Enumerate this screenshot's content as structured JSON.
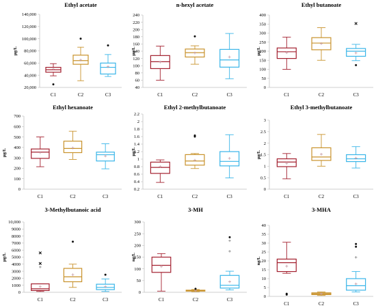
{
  "colors": {
    "C1": "#a31f2e",
    "C2": "#c8922b",
    "C3": "#38b5e8",
    "mean_marker": "#c89da8"
  },
  "chart_data": [
    {
      "type": "box",
      "title": "Ethyl acetate",
      "ylabel": "µg/L",
      "ylim": [
        20000,
        140000
      ],
      "yticks": [
        20000,
        40000,
        60000,
        80000,
        100000,
        120000,
        140000
      ],
      "ytick_labels": [
        "20,000",
        "40,000",
        "60,000",
        "80,000",
        "100,000",
        "120,000",
        "140,000"
      ],
      "categories": [
        "C1",
        "C2",
        "C3"
      ],
      "series": [
        {
          "name": "C1",
          "min": 39000,
          "q1": 45000,
          "median": 49000,
          "q3": 53000,
          "max": 59000,
          "mean": 50000,
          "outliers": [
            {
              "y": 25000,
              "marker": "dot"
            }
          ]
        },
        {
          "name": "C2",
          "min": 31000,
          "q1": 58000,
          "median": 64000,
          "q3": 73000,
          "max": 86000,
          "mean": 65000,
          "outliers": [
            {
              "y": 100000,
              "marker": "dot"
            }
          ]
        },
        {
          "name": "C3",
          "min": 38000,
          "q1": 42000,
          "median": 53000,
          "q3": 60000,
          "max": 74000,
          "mean": 54000,
          "outliers": [
            {
              "y": 89000,
              "marker": "dot"
            }
          ]
        }
      ]
    },
    {
      "type": "box",
      "title": "n-hexyl acetate",
      "ylabel": "µg/L",
      "ylim": [
        40,
        240
      ],
      "yticks": [
        40,
        60,
        80,
        100,
        120,
        140,
        160,
        180,
        200,
        220,
        240
      ],
      "ytick_labels": [
        "40",
        "60",
        "80",
        "100",
        "120",
        "140",
        "160",
        "180",
        "200",
        "220",
        "240"
      ],
      "categories": [
        "C1",
        "C2",
        "C3"
      ],
      "series": [
        {
          "name": "C1",
          "min": 60,
          "q1": 92,
          "median": 111,
          "q3": 128,
          "max": 154,
          "mean": 110,
          "outliers": []
        },
        {
          "name": "C2",
          "min": 104,
          "q1": 124,
          "median": 136,
          "q3": 146,
          "max": 155,
          "mean": 135,
          "outliers": [
            {
              "y": 181,
              "marker": "dot"
            }
          ]
        },
        {
          "name": "C3",
          "min": 64,
          "q1": 96,
          "median": 116,
          "q3": 145,
          "max": 189,
          "mean": 124,
          "outliers": []
        }
      ]
    },
    {
      "type": "box",
      "title": "Ethyl butanoate",
      "ylabel": "µg/L",
      "ylim": [
        0,
        400
      ],
      "yticks": [
        0,
        50,
        100,
        150,
        200,
        250,
        300,
        350,
        400
      ],
      "ytick_labels": [
        "0",
        "50",
        "100",
        "150",
        "200",
        "250",
        "300",
        "350",
        "400"
      ],
      "categories": [
        "C1",
        "C2",
        "C3"
      ],
      "series": [
        {
          "name": "C1",
          "min": 100,
          "q1": 160,
          "median": 197,
          "q3": 218,
          "max": 278,
          "mean": 192,
          "outliers": []
        },
        {
          "name": "C2",
          "min": 150,
          "q1": 208,
          "median": 245,
          "q3": 275,
          "max": 330,
          "mean": 242,
          "outliers": []
        },
        {
          "name": "C3",
          "min": 148,
          "q1": 172,
          "median": 200,
          "q3": 215,
          "max": 238,
          "mean": 190,
          "outliers": [
            {
              "y": 353,
              "marker": "x"
            },
            {
              "y": 123,
              "marker": "dot"
            }
          ]
        }
      ]
    },
    {
      "type": "box",
      "title": "Ethyl hexanoate",
      "ylabel": "µg/L",
      "ylim": [
        0,
        700
      ],
      "yticks": [
        0,
        100,
        200,
        300,
        400,
        500,
        600,
        700
      ],
      "ytick_labels": [
        "0",
        "100",
        "200",
        "300",
        "400",
        "500",
        "600",
        "700"
      ],
      "categories": [
        "C1",
        "C2",
        "C3"
      ],
      "series": [
        {
          "name": "C1",
          "min": 215,
          "q1": 295,
          "median": 355,
          "q3": 385,
          "max": 500,
          "mean": 350,
          "outliers": []
        },
        {
          "name": "C2",
          "min": 285,
          "q1": 350,
          "median": 390,
          "q3": 460,
          "max": 555,
          "mean": 395,
          "outliers": []
        },
        {
          "name": "C3",
          "min": 195,
          "q1": 270,
          "median": 330,
          "q3": 355,
          "max": 435,
          "mean": 318,
          "outliers": []
        }
      ]
    },
    {
      "type": "box",
      "title": "Ethyl 2-methylbutanoate",
      "ylabel": "µg/L",
      "ylim": [
        0.2,
        2.2
      ],
      "yticks": [
        0.2,
        0.4,
        0.6,
        0.8,
        1.0,
        1.2,
        1.4,
        1.6,
        1.8,
        2.0,
        2.2
      ],
      "ytick_labels": [
        "0.2",
        "0.4",
        "0.6",
        "0.8",
        "1",
        "1.2",
        "1.4",
        "1.6",
        "1.8",
        "2",
        "2.2"
      ],
      "categories": [
        "C1",
        "C2",
        "C3"
      ],
      "series": [
        {
          "name": "C1",
          "min": 0.38,
          "q1": 0.62,
          "median": 0.78,
          "q3": 0.92,
          "max": 0.98,
          "mean": 0.8,
          "outliers": []
        },
        {
          "name": "C2",
          "min": 0.75,
          "q1": 0.84,
          "median": 0.95,
          "q3": 1.12,
          "max": 1.15,
          "mean": 0.97,
          "outliers": [
            {
              "y": 1.6,
              "marker": "dot"
            },
            {
              "y": 1.63,
              "marker": "dot"
            }
          ]
        },
        {
          "name": "C3",
          "min": 0.5,
          "q1": 0.82,
          "median": 0.94,
          "q3": 1.2,
          "max": 1.65,
          "mean": 1.02,
          "outliers": []
        }
      ]
    },
    {
      "type": "box",
      "title": "Ethyl 3-methylbutanoate",
      "ylabel": "µg/L",
      "ylim": [
        0,
        3
      ],
      "yticks": [
        0,
        0.5,
        1,
        1.5,
        2,
        2.5,
        3
      ],
      "ytick_labels": [
        "0",
        "0.5",
        "1",
        "1.5",
        "2",
        "2.5",
        "3"
      ],
      "categories": [
        "C1",
        "C2",
        "C3"
      ],
      "series": [
        {
          "name": "C1",
          "min": 0.45,
          "q1": 0.98,
          "median": 1.18,
          "q3": 1.32,
          "max": 1.55,
          "mean": 1.12,
          "outliers": []
        },
        {
          "name": "C2",
          "min": 1.0,
          "q1": 1.25,
          "median": 1.4,
          "q3": 1.8,
          "max": 2.38,
          "mean": 1.52,
          "outliers": []
        },
        {
          "name": "C3",
          "min": 0.92,
          "q1": 1.2,
          "median": 1.32,
          "q3": 1.5,
          "max": 1.85,
          "mean": 1.35,
          "outliers": []
        }
      ]
    },
    {
      "type": "box",
      "title": "3-Methylbutanoic acid",
      "ylabel": "µg/L",
      "ylim": [
        0,
        10000
      ],
      "yticks": [
        0,
        1000,
        2000,
        3000,
        4000,
        5000,
        6000,
        7000,
        8000,
        9000,
        10000
      ],
      "ytick_labels": [
        "0",
        "1000",
        "2000",
        "3000",
        "4000",
        "5000",
        "6000",
        "7000",
        "8000",
        "9000",
        "10,000"
      ],
      "categories": [
        "C1",
        "C2",
        "C3"
      ],
      "series": [
        {
          "name": "C1",
          "min": 120,
          "q1": 250,
          "median": 500,
          "q3": 1200,
          "max": 1200,
          "mean": 800,
          "outliers": [
            {
              "y": 5600,
              "marker": "x"
            },
            {
              "y": 4100,
              "marker": "x"
            },
            {
              "y": 3600,
              "marker": "plus"
            }
          ]
        },
        {
          "name": "C2",
          "min": 700,
          "q1": 1500,
          "median": 2200,
          "q3": 3400,
          "max": 4000,
          "mean": 2500,
          "outliers": [
            {
              "y": 7200,
              "marker": "dot"
            }
          ]
        },
        {
          "name": "C3",
          "min": 120,
          "q1": 380,
          "median": 700,
          "q3": 1150,
          "max": 1900,
          "mean": 800,
          "outliers": [
            {
              "y": 2500,
              "marker": "dot"
            }
          ]
        }
      ]
    },
    {
      "type": "box",
      "title": "3-MH",
      "ylabel": "ng/L",
      "ylim": [
        0,
        300
      ],
      "yticks": [
        0,
        50,
        100,
        150,
        200,
        250,
        300
      ],
      "ytick_labels": [
        "0",
        "50",
        "100",
        "150",
        "200",
        "250",
        "300"
      ],
      "categories": [
        "C1",
        "C2",
        "C3"
      ],
      "series": [
        {
          "name": "C1",
          "min": 5,
          "q1": 85,
          "median": 115,
          "q3": 150,
          "max": 165,
          "mean": 110,
          "outliers": []
        },
        {
          "name": "C2",
          "min": 3,
          "q1": 5,
          "median": 7,
          "q3": 9,
          "max": 12,
          "mean": 8,
          "outliers": [
            {
              "y": 15,
              "marker": "dot"
            }
          ]
        },
        {
          "name": "C3",
          "min": 10,
          "q1": 18,
          "median": 30,
          "q3": 72,
          "max": 90,
          "mean": 45,
          "outliers": [
            {
              "y": 235,
              "marker": "dot"
            },
            {
              "y": 220,
              "marker": "plus"
            },
            {
              "y": 175,
              "marker": "plus"
            }
          ]
        }
      ]
    },
    {
      "type": "box",
      "title": "3-MHA",
      "ylabel": "ng/L",
      "ylim": [
        0,
        40
      ],
      "yticks": [
        0,
        5,
        10,
        15,
        20,
        25,
        30,
        35,
        40
      ],
      "ytick_labels": [
        "0",
        "5",
        "10",
        "15",
        "20",
        "25",
        "30",
        "35",
        "40"
      ],
      "categories": [
        "C1",
        "C2",
        "C3"
      ],
      "series": [
        {
          "name": "C1",
          "min": 13,
          "q1": 14,
          "median": 19,
          "q3": 21,
          "max": 30.5,
          "mean": 17,
          "outliers": [
            {
              "y": 1.5,
              "marker": "dot"
            },
            {
              "y": 1,
              "marker": "dot"
            }
          ]
        },
        {
          "name": "C2",
          "min": 0.5,
          "q1": 1,
          "median": 1.5,
          "q3": 2,
          "max": 2.5,
          "mean": 1.5,
          "outliers": []
        },
        {
          "name": "C3",
          "min": 2.5,
          "q1": 3.5,
          "median": 6,
          "q3": 10,
          "max": 14,
          "mean": 7,
          "outliers": [
            {
              "y": 29.5,
              "marker": "dot"
            },
            {
              "y": 28,
              "marker": "dot"
            },
            {
              "y": 22,
              "marker": "plus"
            }
          ]
        }
      ]
    }
  ]
}
